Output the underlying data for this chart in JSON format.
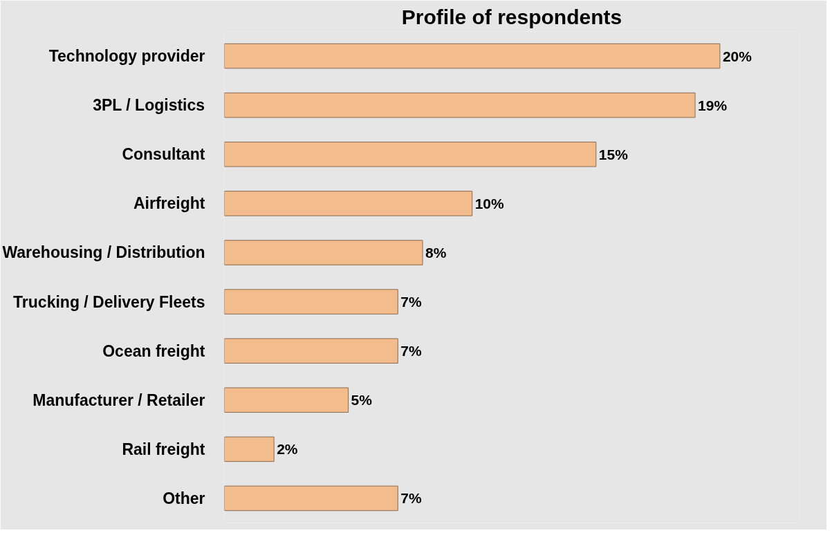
{
  "chart_data": {
    "type": "bar",
    "orientation": "horizontal",
    "title": "Profile of respondents",
    "categories": [
      "Technology provider",
      "3PL / Logistics",
      "Consultant",
      "Airfreight",
      "Warehousing / Distribution",
      "Trucking / Delivery Fleets",
      "Ocean freight",
      "Manufacturer / Retailer",
      "Rail freight",
      "Other"
    ],
    "values": [
      20,
      19,
      15,
      10,
      8,
      7,
      7,
      5,
      2,
      7
    ],
    "value_labels": [
      "20%",
      "19%",
      "15%",
      "10%",
      "8%",
      "7%",
      "7%",
      "5%",
      "2%",
      "7%"
    ],
    "color": "#f2bc8c"
  }
}
